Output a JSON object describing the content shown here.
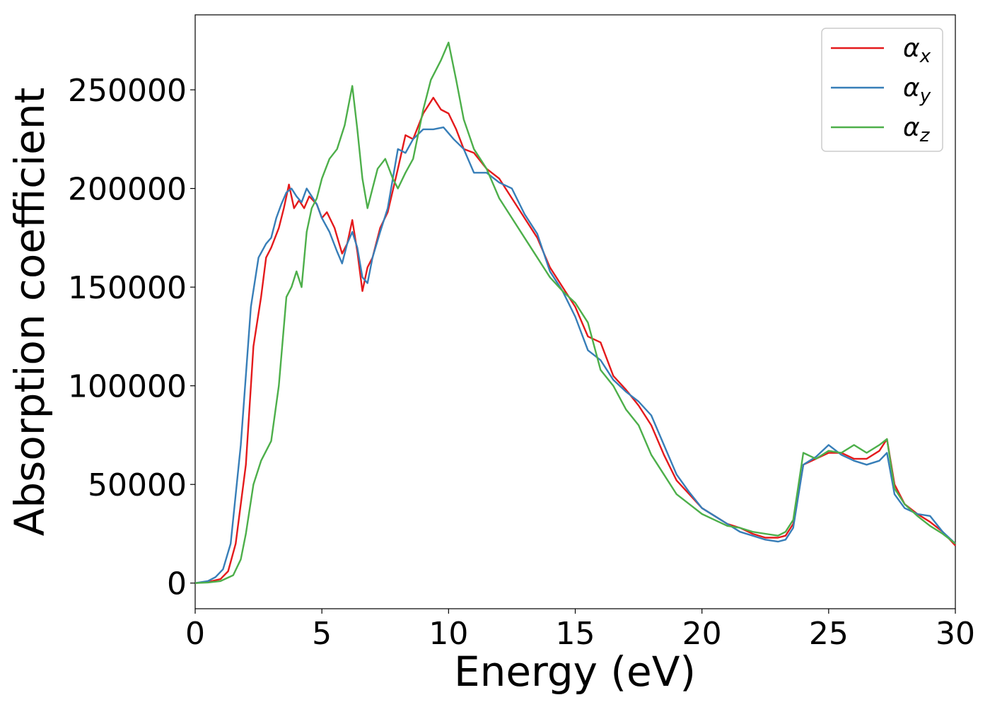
{
  "chart_data": {
    "type": "line",
    "xlabel": "Energy (eV)",
    "ylabel": "Absorption coefficient",
    "xlim": [
      0,
      30
    ],
    "ylim": [
      -13000,
      288000
    ],
    "xticks": [
      0,
      5,
      10,
      15,
      20,
      25,
      30
    ],
    "yticks": [
      0,
      50000,
      100000,
      150000,
      200000,
      250000
    ],
    "legend_position": "top-right",
    "grid": false,
    "series": [
      {
        "name": "α_x",
        "label_main": "α",
        "label_sub": "x",
        "color": "#e41a1c",
        "x": [
          0,
          0.5,
          1.0,
          1.3,
          1.6,
          2.0,
          2.3,
          2.6,
          2.8,
          3.0,
          3.3,
          3.5,
          3.7,
          3.9,
          4.1,
          4.3,
          4.5,
          4.8,
          5.0,
          5.2,
          5.5,
          5.8,
          6.0,
          6.2,
          6.4,
          6.6,
          6.8,
          7.0,
          7.3,
          7.6,
          8.0,
          8.3,
          8.6,
          9.0,
          9.4,
          9.7,
          10.0,
          10.3,
          10.6,
          11.0,
          11.5,
          12.0,
          12.5,
          13.0,
          13.5,
          14.0,
          14.5,
          15.0,
          15.5,
          16.0,
          16.5,
          17.0,
          17.5,
          18.0,
          18.5,
          19.0,
          19.5,
          20.0,
          20.5,
          21.0,
          21.5,
          22.0,
          22.5,
          23.0,
          23.3,
          23.6,
          24.0,
          24.5,
          25.0,
          25.5,
          26.0,
          26.5,
          27.0,
          27.3,
          27.6,
          28.0,
          28.5,
          29.0,
          29.5,
          30.0
        ],
        "y": [
          0,
          500,
          2000,
          6000,
          20000,
          60000,
          120000,
          145000,
          165000,
          170000,
          180000,
          190000,
          202000,
          190000,
          194000,
          190000,
          196000,
          192000,
          185000,
          188000,
          180000,
          167000,
          172000,
          184000,
          168000,
          148000,
          160000,
          165000,
          180000,
          188000,
          210000,
          227000,
          225000,
          238000,
          246000,
          240000,
          238000,
          230000,
          220000,
          218000,
          210000,
          205000,
          195000,
          185000,
          175000,
          160000,
          150000,
          140000,
          125000,
          122000,
          105000,
          98000,
          90000,
          80000,
          65000,
          52000,
          45000,
          38000,
          34000,
          30000,
          28000,
          25000,
          23000,
          23000,
          24000,
          30000,
          60000,
          63000,
          66000,
          66000,
          63000,
          63000,
          67000,
          73000,
          50000,
          40000,
          35000,
          31000,
          26000,
          19000
        ]
      },
      {
        "name": "α_y",
        "label_main": "α",
        "label_sub": "y",
        "color": "#377eb8",
        "x": [
          0,
          0.5,
          0.8,
          1.1,
          1.4,
          1.8,
          2.2,
          2.5,
          2.8,
          3.0,
          3.2,
          3.4,
          3.6,
          3.8,
          4.0,
          4.2,
          4.4,
          4.6,
          4.8,
          5.0,
          5.3,
          5.6,
          5.8,
          6.0,
          6.2,
          6.4,
          6.6,
          6.8,
          7.0,
          7.3,
          7.6,
          8.0,
          8.3,
          8.6,
          9.0,
          9.4,
          9.8,
          10.2,
          10.6,
          11.0,
          11.5,
          12.0,
          12.5,
          13.0,
          13.5,
          14.0,
          14.5,
          15.0,
          15.5,
          16.0,
          16.5,
          17.0,
          17.5,
          18.0,
          18.5,
          19.0,
          19.5,
          20.0,
          20.5,
          21.0,
          21.5,
          22.0,
          22.5,
          23.0,
          23.3,
          23.6,
          24.0,
          24.5,
          25.0,
          25.5,
          26.0,
          26.5,
          27.0,
          27.3,
          27.6,
          28.0,
          28.5,
          29.0,
          29.5,
          30.0
        ],
        "y": [
          0,
          1000,
          3000,
          7000,
          20000,
          70000,
          140000,
          165000,
          172000,
          175000,
          185000,
          192000,
          198000,
          200000,
          196000,
          193000,
          200000,
          196000,
          192000,
          185000,
          178000,
          168000,
          162000,
          172000,
          178000,
          170000,
          155000,
          152000,
          165000,
          178000,
          190000,
          220000,
          218000,
          225000,
          230000,
          230000,
          231000,
          225000,
          220000,
          208000,
          208000,
          203000,
          200000,
          187000,
          177000,
          158000,
          148000,
          135000,
          118000,
          113000,
          103000,
          97000,
          92000,
          85000,
          70000,
          55000,
          46000,
          38000,
          34000,
          30000,
          26000,
          24000,
          22000,
          21000,
          22000,
          28000,
          60000,
          64000,
          70000,
          65000,
          62000,
          60000,
          62000,
          66000,
          45000,
          38000,
          35000,
          34000,
          26000,
          20000
        ]
      },
      {
        "name": "α_z",
        "label_main": "α",
        "label_sub": "z",
        "color": "#4daf4a",
        "x": [
          0,
          0.5,
          1.0,
          1.5,
          1.8,
          2.0,
          2.3,
          2.6,
          3.0,
          3.3,
          3.6,
          3.8,
          4.0,
          4.2,
          4.4,
          4.6,
          4.8,
          5.0,
          5.3,
          5.6,
          5.9,
          6.2,
          6.4,
          6.6,
          6.8,
          7.0,
          7.2,
          7.5,
          7.8,
          8.0,
          8.3,
          8.6,
          9.0,
          9.3,
          9.7,
          10.0,
          10.3,
          10.6,
          11.0,
          11.5,
          12.0,
          12.5,
          13.0,
          13.5,
          14.0,
          14.5,
          15.0,
          15.5,
          16.0,
          16.5,
          17.0,
          17.5,
          18.0,
          18.5,
          19.0,
          19.5,
          20.0,
          20.5,
          21.0,
          21.5,
          22.0,
          22.5,
          23.0,
          23.3,
          23.6,
          24.0,
          24.5,
          25.0,
          25.5,
          26.0,
          26.5,
          27.0,
          27.3,
          27.6,
          28.0,
          28.5,
          29.0,
          29.5,
          30.0
        ],
        "y": [
          0,
          300,
          1000,
          4000,
          12000,
          25000,
          50000,
          62000,
          72000,
          100000,
          145000,
          150000,
          158000,
          150000,
          178000,
          190000,
          195000,
          205000,
          215000,
          220000,
          232000,
          252000,
          230000,
          205000,
          190000,
          200000,
          210000,
          215000,
          205000,
          200000,
          208000,
          215000,
          240000,
          255000,
          265000,
          274000,
          255000,
          235000,
          220000,
          210000,
          195000,
          185000,
          175000,
          165000,
          155000,
          148000,
          142000,
          132000,
          108000,
          100000,
          88000,
          80000,
          65000,
          55000,
          45000,
          40000,
          35000,
          32000,
          29000,
          28000,
          26000,
          25000,
          24000,
          26000,
          32000,
          66000,
          63000,
          67000,
          66000,
          70000,
          66000,
          70000,
          73000,
          48000,
          40000,
          34000,
          29000,
          25000,
          20000
        ]
      }
    ]
  }
}
